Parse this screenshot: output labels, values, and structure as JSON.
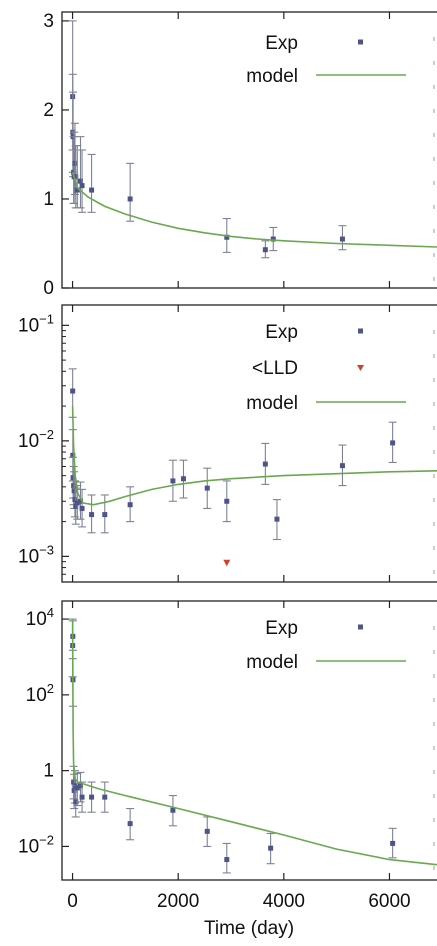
{
  "chart_data": [
    {
      "type": "scatter",
      "yscale": "linear",
      "xlim": [
        -200,
        6900
      ],
      "ylim": [
        0,
        3.1
      ],
      "yticks": [
        {
          "v": 0,
          "label": "0"
        },
        {
          "v": 1,
          "label": "1"
        },
        {
          "v": 2,
          "label": "2"
        },
        {
          "v": 3,
          "label": "3"
        }
      ],
      "xticks": [
        0,
        2000,
        4000,
        6000
      ],
      "legend": {
        "position": "top-right",
        "entries": [
          {
            "label": "Exp",
            "kind": "marker",
            "color": "#4f5488"
          },
          {
            "label": "model",
            "kind": "line",
            "color": "#6aa84f"
          }
        ]
      },
      "series": [
        {
          "name": "Exp",
          "kind": "points",
          "color": "#4f5488",
          "points": [
            {
              "x": 2,
              "y": 2.15,
              "lo": 1.55,
              "hi": 3.0
            },
            {
              "x": 5,
              "y": 1.75,
              "lo": 1.3,
              "hi": 2.4
            },
            {
              "x": 10,
              "y": 1.7,
              "lo": 1.25,
              "hi": 2.2
            },
            {
              "x": 20,
              "y": 1.3,
              "lo": 0.95,
              "hi": 1.7
            },
            {
              "x": 30,
              "y": 1.25,
              "lo": 0.95,
              "hi": 1.75
            },
            {
              "x": 45,
              "y": 1.4,
              "lo": 1.05,
              "hi": 1.85
            },
            {
              "x": 60,
              "y": 1.25,
              "lo": 0.9,
              "hi": 1.6
            },
            {
              "x": 90,
              "y": 1.1,
              "lo": 0.9,
              "hi": 1.6
            },
            {
              "x": 150,
              "y": 1.2,
              "lo": 0.9,
              "hi": 1.7
            },
            {
              "x": 180,
              "y": 1.15,
              "lo": 0.85,
              "hi": 1.55
            },
            {
              "x": 360,
              "y": 1.1,
              "lo": 0.85,
              "hi": 1.5
            },
            {
              "x": 1090,
              "y": 1.0,
              "lo": 0.75,
              "hi": 1.4
            },
            {
              "x": 2920,
              "y": 0.57,
              "lo": 0.4,
              "hi": 0.78
            },
            {
              "x": 3650,
              "y": 0.43,
              "lo": 0.34,
              "hi": 0.53
            },
            {
              "x": 3800,
              "y": 0.55,
              "lo": 0.42,
              "hi": 0.68
            },
            {
              "x": 5110,
              "y": 0.55,
              "lo": 0.43,
              "hi": 0.7
            }
          ]
        },
        {
          "name": "model",
          "kind": "line",
          "color": "#6aa84f",
          "points": [
            {
              "x": 0,
              "y": 1.3
            },
            {
              "x": 100,
              "y": 1.12
            },
            {
              "x": 300,
              "y": 1.02
            },
            {
              "x": 600,
              "y": 0.92
            },
            {
              "x": 1000,
              "y": 0.83
            },
            {
              "x": 1500,
              "y": 0.74
            },
            {
              "x": 2000,
              "y": 0.67
            },
            {
              "x": 2500,
              "y": 0.62
            },
            {
              "x": 3000,
              "y": 0.58
            },
            {
              "x": 3500,
              "y": 0.55
            },
            {
              "x": 4000,
              "y": 0.53
            },
            {
              "x": 5000,
              "y": 0.5
            },
            {
              "x": 6000,
              "y": 0.48
            },
            {
              "x": 6900,
              "y": 0.46
            }
          ]
        }
      ]
    },
    {
      "type": "scatter",
      "yscale": "log",
      "xlim": [
        -200,
        6900
      ],
      "ylim": [
        0.0006,
        0.15
      ],
      "yticks": [
        {
          "v": 0.001,
          "base": "10",
          "exp": "−3"
        },
        {
          "v": 0.01,
          "base": "10",
          "exp": "−2"
        },
        {
          "v": 0.1,
          "base": "10",
          "exp": "−1"
        }
      ],
      "xticks": [
        0,
        2000,
        4000,
        6000
      ],
      "legend": {
        "position": "top-right",
        "entries": [
          {
            "label": "Exp",
            "kind": "marker",
            "color": "#4f5488"
          },
          {
            "label": "<LLD",
            "kind": "triangle",
            "color": "#d0402b"
          },
          {
            "label": "model",
            "kind": "line",
            "color": "#6aa84f"
          }
        ]
      },
      "series": [
        {
          "name": "Exp",
          "kind": "points",
          "color": "#4f5488",
          "points": [
            {
              "x": 2,
              "y": 0.027,
              "lo": 0.016,
              "hi": 0.042
            },
            {
              "x": 5,
              "y": 0.0075,
              "lo": 0.0045,
              "hi": 0.0125
            },
            {
              "x": 10,
              "y": 0.0048,
              "lo": 0.0032,
              "hi": 0.0072
            },
            {
              "x": 20,
              "y": 0.0041,
              "lo": 0.0028,
              "hi": 0.006
            },
            {
              "x": 30,
              "y": 0.0037,
              "lo": 0.0026,
              "hi": 0.0054
            },
            {
              "x": 45,
              "y": 0.0031,
              "lo": 0.0022,
              "hi": 0.0045
            },
            {
              "x": 60,
              "y": 0.0027,
              "lo": 0.0019,
              "hi": 0.0039
            },
            {
              "x": 90,
              "y": 0.0029,
              "lo": 0.0021,
              "hi": 0.0041
            },
            {
              "x": 150,
              "y": 0.003,
              "lo": 0.0021,
              "hi": 0.0044
            },
            {
              "x": 180,
              "y": 0.0026,
              "lo": 0.0018,
              "hi": 0.0038
            },
            {
              "x": 360,
              "y": 0.0023,
              "lo": 0.0016,
              "hi": 0.0034
            },
            {
              "x": 610,
              "y": 0.0023,
              "lo": 0.0016,
              "hi": 0.0034
            },
            {
              "x": 1090,
              "y": 0.0028,
              "lo": 0.002,
              "hi": 0.004
            },
            {
              "x": 1900,
              "y": 0.0045,
              "lo": 0.003,
              "hi": 0.0068
            },
            {
              "x": 2100,
              "y": 0.0047,
              "lo": 0.0032,
              "hi": 0.0068
            },
            {
              "x": 2550,
              "y": 0.0039,
              "lo": 0.0026,
              "hi": 0.0058
            },
            {
              "x": 2920,
              "y": 0.003,
              "lo": 0.002,
              "hi": 0.0045
            },
            {
              "x": 3650,
              "y": 0.0063,
              "lo": 0.0042,
              "hi": 0.0095
            },
            {
              "x": 3870,
              "y": 0.0021,
              "lo": 0.0014,
              "hi": 0.0031
            },
            {
              "x": 5110,
              "y": 0.0061,
              "lo": 0.0041,
              "hi": 0.0092
            },
            {
              "x": 6060,
              "y": 0.0096,
              "lo": 0.0065,
              "hi": 0.0145
            }
          ]
        },
        {
          "name": "<LLD",
          "kind": "triangles",
          "color": "#d0402b",
          "points": [
            {
              "x": 2920,
              "y": 0.00088
            }
          ]
        },
        {
          "name": "model",
          "kind": "line",
          "color": "#6aa84f",
          "points": [
            {
              "x": 0,
              "y": 0.02
            },
            {
              "x": 20,
              "y": 0.009
            },
            {
              "x": 50,
              "y": 0.005
            },
            {
              "x": 100,
              "y": 0.0035
            },
            {
              "x": 200,
              "y": 0.0029
            },
            {
              "x": 400,
              "y": 0.0028
            },
            {
              "x": 700,
              "y": 0.003
            },
            {
              "x": 1000,
              "y": 0.0033
            },
            {
              "x": 1500,
              "y": 0.0038
            },
            {
              "x": 2000,
              "y": 0.0042
            },
            {
              "x": 2500,
              "y": 0.0045
            },
            {
              "x": 3000,
              "y": 0.0047
            },
            {
              "x": 4000,
              "y": 0.005
            },
            {
              "x": 5000,
              "y": 0.0052
            },
            {
              "x": 6000,
              "y": 0.0054
            },
            {
              "x": 6900,
              "y": 0.0055
            }
          ]
        }
      ]
    },
    {
      "type": "scatter",
      "yscale": "log",
      "xlim": [
        -200,
        6900
      ],
      "ylim": [
        0.0013,
        30000
      ],
      "yticks": [
        {
          "v": 0.01,
          "base": "10",
          "exp": "−2"
        },
        {
          "v": 1,
          "label": "1"
        },
        {
          "v": 100,
          "base": "10",
          "exp": "2"
        },
        {
          "v": 10000,
          "base": "10",
          "exp": "4"
        }
      ],
      "xticks": [
        0,
        2000,
        4000,
        6000
      ],
      "xticklabels": [
        "0",
        "2000",
        "4000",
        "6000"
      ],
      "xlabel": "Time (day)",
      "legend": {
        "position": "top-right",
        "entries": [
          {
            "label": "Exp",
            "kind": "marker",
            "color": "#4f5488"
          },
          {
            "label": "model",
            "kind": "line",
            "color": "#6aa84f"
          }
        ]
      },
      "series": [
        {
          "name": "Exp",
          "kind": "points",
          "color": "#4f5488",
          "points": [
            {
              "x": 2,
              "y": 2000,
              "lo": 300,
              "hi": 10000
            },
            {
              "x": 5,
              "y": 3500,
              "lo": 900,
              "hi": 9000
            },
            {
              "x": 8,
              "y": 250,
              "lo": 50,
              "hi": 1500
            },
            {
              "x": 20,
              "y": 0.5,
              "lo": 0.18,
              "hi": 1.3
            },
            {
              "x": 30,
              "y": 0.3,
              "lo": 0.1,
              "hi": 0.8
            },
            {
              "x": 45,
              "y": 0.4,
              "lo": 0.14,
              "hi": 1.0
            },
            {
              "x": 60,
              "y": 0.15,
              "lo": 0.06,
              "hi": 0.4
            },
            {
              "x": 90,
              "y": 0.35,
              "lo": 0.12,
              "hi": 0.85
            },
            {
              "x": 150,
              "y": 0.4,
              "lo": 0.15,
              "hi": 0.9
            },
            {
              "x": 180,
              "y": 0.2,
              "lo": 0.08,
              "hi": 0.5
            },
            {
              "x": 360,
              "y": 0.2,
              "lo": 0.08,
              "hi": 0.5
            },
            {
              "x": 610,
              "y": 0.2,
              "lo": 0.08,
              "hi": 0.5
            },
            {
              "x": 1090,
              "y": 0.04,
              "lo": 0.015,
              "hi": 0.1
            },
            {
              "x": 1900,
              "y": 0.09,
              "lo": 0.035,
              "hi": 0.22
            },
            {
              "x": 2550,
              "y": 0.025,
              "lo": 0.01,
              "hi": 0.06
            },
            {
              "x": 2920,
              "y": 0.0045,
              "lo": 0.002,
              "hi": 0.012
            },
            {
              "x": 3750,
              "y": 0.009,
              "lo": 0.0035,
              "hi": 0.022
            },
            {
              "x": 6060,
              "y": 0.012,
              "lo": 0.005,
              "hi": 0.03
            }
          ]
        },
        {
          "name": "model",
          "kind": "line",
          "color": "#6aa84f",
          "points": [
            {
              "x": 0,
              "y": 10000
            },
            {
              "x": 3,
              "y": 1500
            },
            {
              "x": 6,
              "y": 150
            },
            {
              "x": 10,
              "y": 12
            },
            {
              "x": 20,
              "y": 1.5
            },
            {
              "x": 50,
              "y": 0.6
            },
            {
              "x": 100,
              "y": 0.5
            },
            {
              "x": 500,
              "y": 0.33
            },
            {
              "x": 1000,
              "y": 0.22
            },
            {
              "x": 2000,
              "y": 0.1
            },
            {
              "x": 3000,
              "y": 0.045
            },
            {
              "x": 4000,
              "y": 0.02
            },
            {
              "x": 5000,
              "y": 0.0085
            },
            {
              "x": 6000,
              "y": 0.0045
            },
            {
              "x": 6900,
              "y": 0.0033
            }
          ]
        }
      ]
    }
  ]
}
